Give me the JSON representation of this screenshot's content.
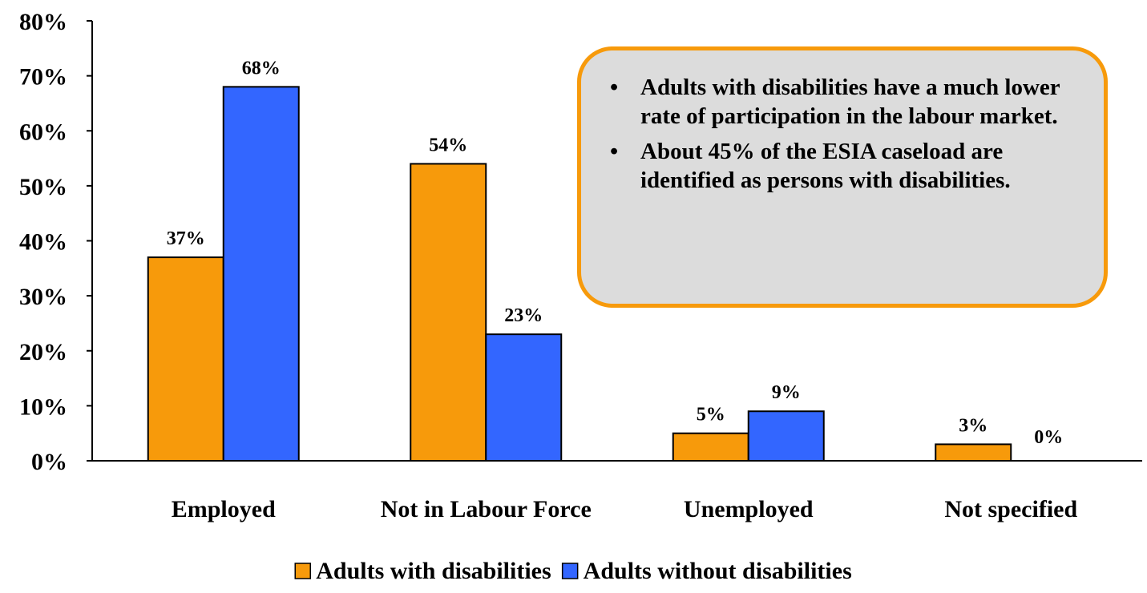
{
  "chart_data": {
    "type": "bar",
    "categories": [
      "Employed",
      "Not in Labour Force",
      "Unemployed",
      "Not specified"
    ],
    "series": [
      {
        "name": "Adults with disabilities",
        "color": "#f79a0b",
        "values": [
          37,
          54,
          5,
          3
        ],
        "labels": [
          "37%",
          "54%",
          "5%",
          "3%"
        ]
      },
      {
        "name": "Adults without disabilities",
        "color": "#3366ff",
        "values": [
          68,
          23,
          9,
          0
        ],
        "labels": [
          "68%",
          "23%",
          "9%",
          "0%"
        ]
      }
    ],
    "yticks": [
      "0%",
      "10%",
      "20%",
      "30%",
      "40%",
      "50%",
      "60%",
      "70%",
      "80%"
    ],
    "ylim": [
      0,
      80
    ],
    "grid": false,
    "legend_position": "bottom"
  },
  "annotation": {
    "bullets": [
      "Adults with disabilities have a much lower rate of participation in the labour market.",
      "About 45% of the ESIA caseload are identified as persons with disabilities."
    ],
    "bullet_symbol": "•",
    "box_fill": "#dcdcdc",
    "box_border": "#f79a0b"
  }
}
